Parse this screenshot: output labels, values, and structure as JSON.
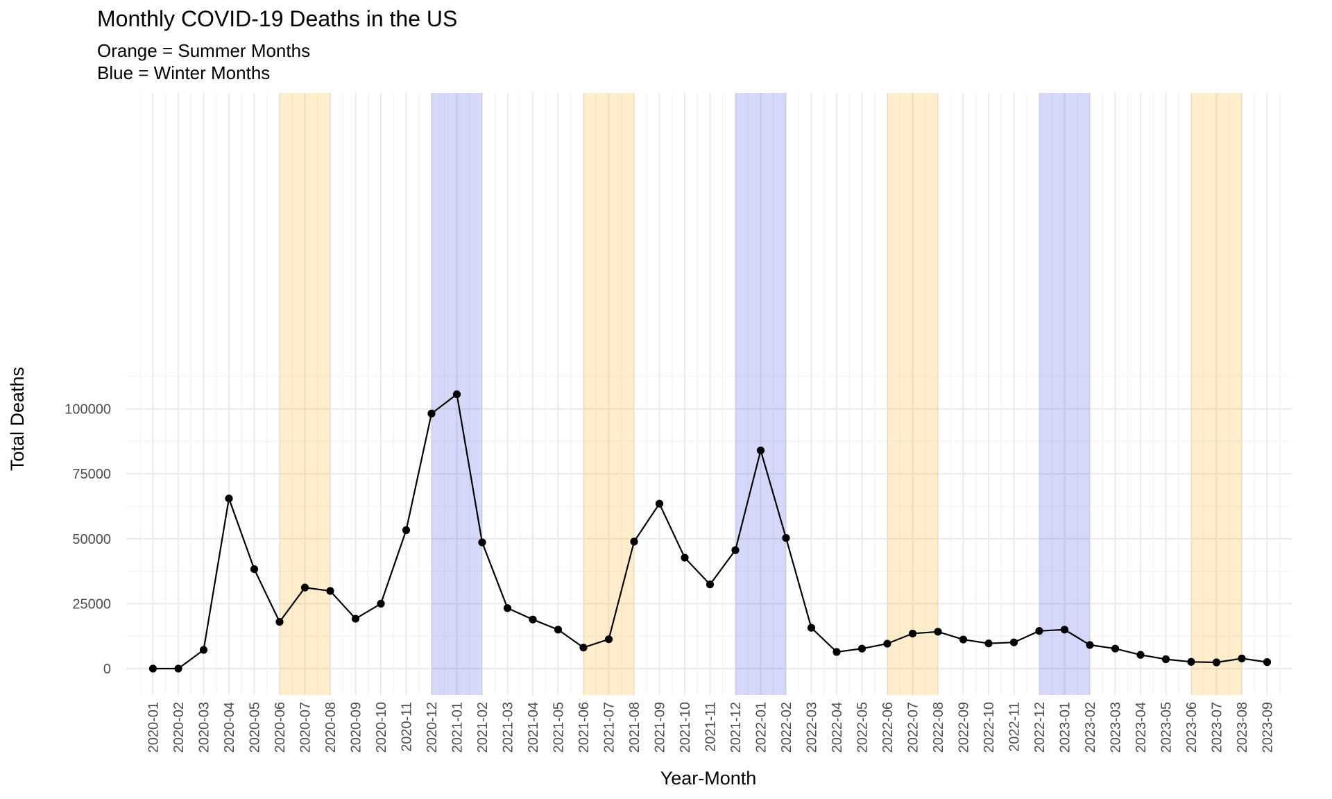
{
  "chart_data": {
    "type": "line",
    "title": "Monthly COVID-19 Deaths in the US",
    "subtitle_lines": [
      "Orange = Summer Months",
      "Blue = Winter Months"
    ],
    "xlabel": "Year-Month",
    "ylabel": "Total Deaths",
    "ylim": [
      -5000,
      111000
    ],
    "y_ticks": [
      0,
      25000,
      50000,
      75000,
      100000
    ],
    "y_tick_labels": [
      "0",
      "25000",
      "50000",
      "75000",
      "100000"
    ],
    "grid": true,
    "legend": "none",
    "categories": [
      "2020-01",
      "2020-02",
      "2020-03",
      "2020-04",
      "2020-05",
      "2020-06",
      "2020-07",
      "2020-08",
      "2020-09",
      "2020-10",
      "2020-11",
      "2020-12",
      "2021-01",
      "2021-02",
      "2021-03",
      "2021-04",
      "2021-05",
      "2021-06",
      "2021-07",
      "2021-08",
      "2021-09",
      "2021-10",
      "2021-11",
      "2021-12",
      "2022-01",
      "2022-02",
      "2022-03",
      "2022-04",
      "2022-05",
      "2022-06",
      "2022-07",
      "2022-08",
      "2022-09",
      "2022-10",
      "2022-11",
      "2022-12",
      "2023-01",
      "2023-02",
      "2023-03",
      "2023-04",
      "2023-05",
      "2023-06",
      "2023-07",
      "2023-08",
      "2023-09"
    ],
    "values": [
      0,
      0,
      7200,
      65500,
      38300,
      18000,
      31200,
      29900,
      19200,
      25000,
      53300,
      98200,
      105600,
      48600,
      23300,
      18900,
      15000,
      8100,
      11300,
      48900,
      63500,
      42700,
      32400,
      45600,
      84000,
      50300,
      15700,
      6400,
      7700,
      9600,
      13500,
      14200,
      11200,
      9700,
      10100,
      14500,
      15000,
      9100,
      7700,
      5300,
      3600,
      2600,
      2400,
      3900,
      2500
    ],
    "line_color": "#000000",
    "point_color": "#000000",
    "bands": [
      {
        "season": "summer",
        "from": "2020-06",
        "to": "2020-08",
        "color": "#FFA500"
      },
      {
        "season": "winter",
        "from": "2020-12",
        "to": "2021-02",
        "color": "#3F4FE0"
      },
      {
        "season": "summer",
        "from": "2021-06",
        "to": "2021-08",
        "color": "#FFA500"
      },
      {
        "season": "winter",
        "from": "2021-12",
        "to": "2022-02",
        "color": "#3F4FE0"
      },
      {
        "season": "summer",
        "from": "2022-06",
        "to": "2022-08",
        "color": "#FFA500"
      },
      {
        "season": "winter",
        "from": "2022-12",
        "to": "2023-02",
        "color": "#3F4FE0"
      },
      {
        "season": "summer",
        "from": "2023-06",
        "to": "2023-08",
        "color": "#FFA500"
      }
    ]
  }
}
